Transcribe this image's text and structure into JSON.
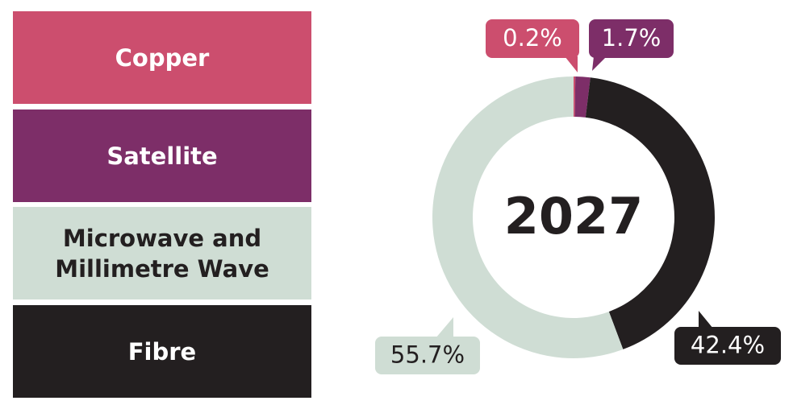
{
  "chart_data": {
    "type": "donut",
    "center_label": "2027",
    "categories": [
      "Copper",
      "Satellite",
      "Fibre",
      "Microwave and Millimetre Wave"
    ],
    "values": [
      0.2,
      1.7,
      42.4,
      55.7
    ],
    "value_labels": [
      "0.2%",
      "1.7%",
      "42.4%",
      "55.7%"
    ],
    "colors": [
      "#cc4e6e",
      "#7d2e68",
      "#231f20",
      "#cfddd4"
    ]
  }
}
